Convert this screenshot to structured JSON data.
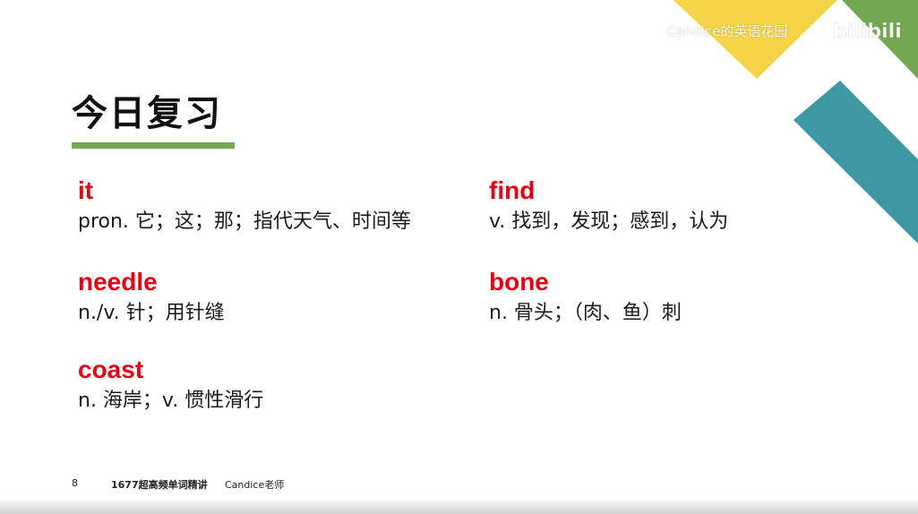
{
  "watermark": {
    "text": "Candice的英语花园"
  },
  "logo": {
    "text": "bilibili"
  },
  "title": "今日复习",
  "entries": [
    {
      "word": "it",
      "definition": "pron. 它；这；那；指代天气、时间等"
    },
    {
      "word": "needle",
      "definition": "n./v. 针；用针缝"
    },
    {
      "word": "coast",
      "definition": "n. 海岸；v. 惯性滑行"
    },
    {
      "word": "find",
      "definition": "v. 找到，发现；感到，认为"
    },
    {
      "word": "bone",
      "definition": "n. 骨头；（肉、鱼）刺"
    }
  ],
  "footer": {
    "page_number": "8",
    "course": "1677超高频单词精讲",
    "teacher": "Candice老师"
  },
  "colors": {
    "accent_red": "#E60012",
    "green": "#72A84F",
    "yellow": "#F5D547",
    "teal": "#3E97A3"
  }
}
